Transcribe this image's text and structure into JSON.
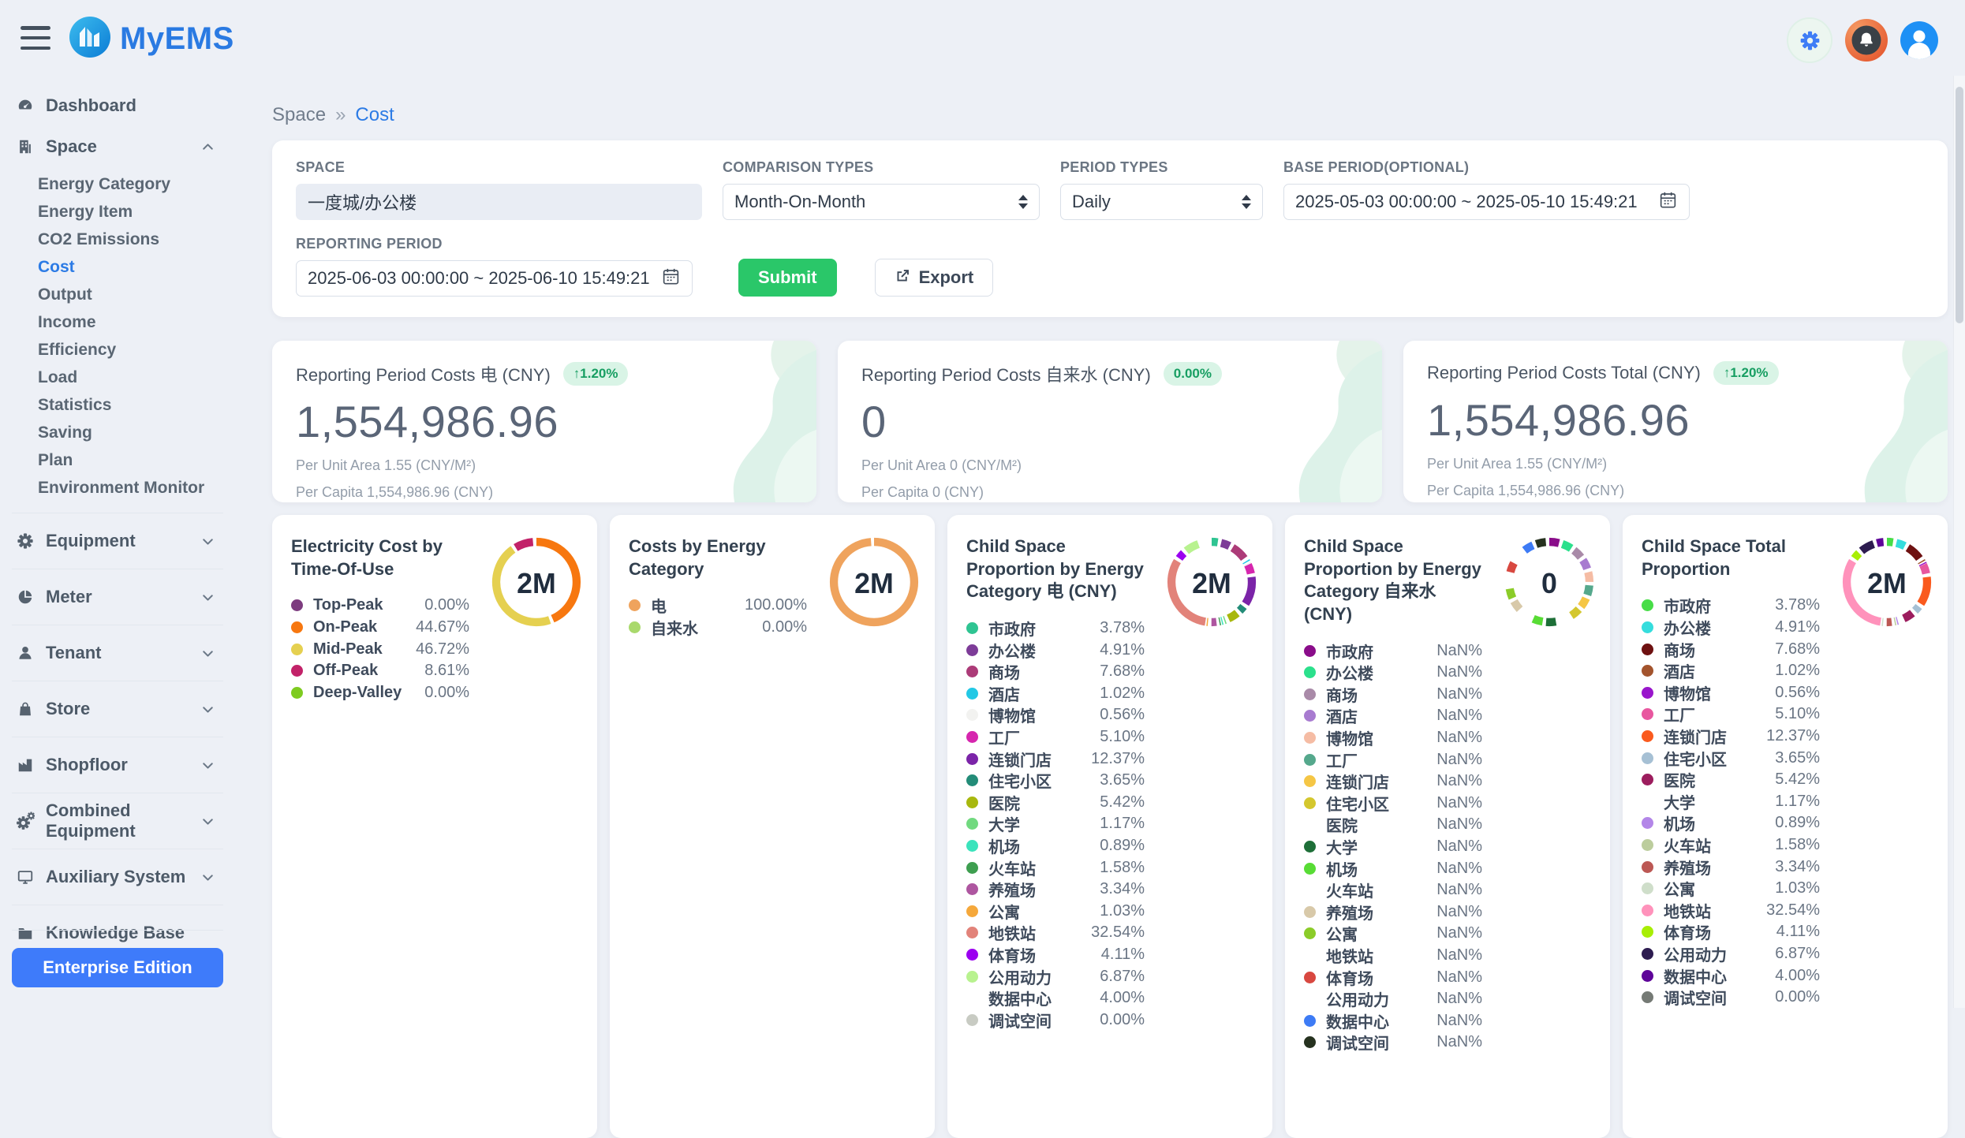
{
  "header": {
    "logo_text": "MyEMS",
    "icons": [
      "menu-icon",
      "settings-gear-icon",
      "notifications-bell-icon",
      "user-avatar-icon"
    ]
  },
  "colors": {
    "accent_blue": "#2c7be5",
    "submit_green": "#2ac769",
    "badge_green_bg": "#d9f4e6",
    "badge_green_text": "#179e62",
    "page_bg": "#edf0f6"
  },
  "breadcrumb": {
    "parent": "Space",
    "separator": "»",
    "current": "Cost"
  },
  "sidebar": {
    "items": [
      {
        "label": "Dashboard",
        "icon": "dashboard",
        "chevron": null,
        "divider": false
      },
      {
        "label": "Space",
        "icon": "building",
        "chevron": "up",
        "divider": false,
        "children": [
          "Energy Category",
          "Energy Item",
          "CO2 Emissions",
          "Cost",
          "Output",
          "Income",
          "Efficiency",
          "Load",
          "Statistics",
          "Saving",
          "Plan",
          "Environment Monitor"
        ],
        "active_child": "Cost"
      },
      {
        "label": "Equipment",
        "icon": "gear",
        "chevron": "down",
        "divider": true
      },
      {
        "label": "Meter",
        "icon": "pie",
        "chevron": "down",
        "divider": true
      },
      {
        "label": "Tenant",
        "icon": "person",
        "chevron": "down",
        "divider": true
      },
      {
        "label": "Store",
        "icon": "bag",
        "chevron": "down",
        "divider": true
      },
      {
        "label": "Shopfloor",
        "icon": "factory",
        "chevron": "down",
        "divider": true
      },
      {
        "label": "Combined Equipment",
        "icon": "gears",
        "chevron": "down",
        "divider": true
      },
      {
        "label": "Auxiliary System",
        "icon": "monitor",
        "chevron": "down",
        "divider": true
      },
      {
        "label": "Knowledge Base",
        "icon": "folder",
        "chevron": null,
        "divider": true
      }
    ],
    "edition_button": "Enterprise Edition"
  },
  "filter": {
    "space_label": "SPACE",
    "space_value": "一度城/办公楼",
    "comparison_label": "COMPARISON TYPES",
    "comparison_value": "Month-On-Month",
    "period_label": "PERIOD TYPES",
    "period_value": "Daily",
    "base_label": "BASE PERIOD(OPTIONAL)",
    "base_value": "2025-05-03 00:00:00 ~ 2025-05-10 15:49:21",
    "reporting_label": "REPORTING PERIOD",
    "reporting_value": "2025-06-03 00:00:00 ~ 2025-06-10 15:49:21",
    "submit_label": "Submit",
    "export_label": "Export"
  },
  "stat_cards": [
    {
      "title": "Reporting Period Costs 电 (CNY)",
      "badge": "↑1.20%",
      "value": "1,554,986.96",
      "sub1": "Per Unit Area 1.55 (CNY/M²)",
      "sub2": "Per Capita 1,554,986.96 (CNY)"
    },
    {
      "title": "Reporting Period Costs 自来水 (CNY)",
      "badge": "0.00%",
      "value": "0",
      "sub1": "Per Unit Area 0 (CNY/M²)",
      "sub2": "Per Capita 0 (CNY)"
    },
    {
      "title": "Reporting Period Costs Total (CNY)",
      "badge": "↑1.20%",
      "value": "1,554,986.96",
      "sub1": "Per Unit Area 1.55 (CNY/M²)",
      "sub2": "Per Capita 1,554,986.96 (CNY)"
    }
  ],
  "chart_data": [
    {
      "type": "donut",
      "title": "Electricity Cost by Time-Of-Use",
      "center_label": "2M",
      "legend_position": "left",
      "series": [
        {
          "name": "Top-Peak",
          "value": "0.00%",
          "pct": 0,
          "color": "#7d3c7f"
        },
        {
          "name": "On-Peak",
          "value": "44.67%",
          "pct": 44.67,
          "color": "#f7770f"
        },
        {
          "name": "Mid-Peak",
          "value": "46.72%",
          "pct": 46.72,
          "color": "#e5d050"
        },
        {
          "name": "Off-Peak",
          "value": "8.61%",
          "pct": 8.61,
          "color": "#c22269"
        },
        {
          "name": "Deep-Valley",
          "value": "0.00%",
          "pct": 0,
          "color": "#7ecb20"
        }
      ]
    },
    {
      "type": "donut",
      "title": "Costs by Energy Category",
      "center_label": "2M",
      "legend_position": "left",
      "series": [
        {
          "name": "电",
          "value": "100.00%",
          "pct": 100,
          "color": "#efa35d"
        },
        {
          "name": "自来水",
          "value": "0.00%",
          "pct": 0,
          "color": "#a9d96c"
        }
      ]
    },
    {
      "type": "donut",
      "title": "Child Space Proportion by Energy Category 电 (CNY)",
      "center_label": "2M",
      "legend_position": "left",
      "series": [
        {
          "name": "市政府",
          "value": "3.78%",
          "pct": 3.78,
          "color": "#2fc492"
        },
        {
          "name": "办公楼",
          "value": "4.91%",
          "pct": 4.91,
          "color": "#7d3c98"
        },
        {
          "name": "商场",
          "value": "7.68%",
          "pct": 7.68,
          "color": "#ac3b78"
        },
        {
          "name": "酒店",
          "value": "1.02%",
          "pct": 1.02,
          "color": "#22c8e5"
        },
        {
          "name": "博物馆",
          "value": "0.56%",
          "pct": 0.56,
          "color": "#f2f2f0"
        },
        {
          "name": "工厂",
          "value": "5.10%",
          "pct": 5.1,
          "color": "#d626ae"
        },
        {
          "name": "连锁门店",
          "value": "12.37%",
          "pct": 12.37,
          "color": "#7b24a8"
        },
        {
          "name": "住宅小区",
          "value": "3.65%",
          "pct": 3.65,
          "color": "#238c78"
        },
        {
          "name": "医院",
          "value": "5.42%",
          "pct": 5.42,
          "color": "#a8b80e"
        },
        {
          "name": "大学",
          "value": "1.17%",
          "pct": 1.17,
          "color": "#71d97f"
        },
        {
          "name": "机场",
          "value": "0.89%",
          "pct": 0.89,
          "color": "#3be3bc"
        },
        {
          "name": "火车站",
          "value": "1.58%",
          "pct": 1.58,
          "color": "#3e9e50"
        },
        {
          "name": "养殖场",
          "value": "3.34%",
          "pct": 3.34,
          "color": "#ae56a0"
        },
        {
          "name": "公寓",
          "value": "1.03%",
          "pct": 1.03,
          "color": "#f5a83b"
        },
        {
          "name": "地铁站",
          "value": "32.54%",
          "pct": 32.54,
          "color": "#e2837a"
        },
        {
          "name": "体育场",
          "value": "4.11%",
          "pct": 4.11,
          "color": "#9b00f0"
        },
        {
          "name": "公用动力",
          "value": "6.87%",
          "pct": 6.87,
          "color": "#b8f28f"
        },
        {
          "name": "数据中心",
          "value": "4.00%",
          "pct": 4.0,
          "color": "#ffffff"
        },
        {
          "name": "调试空间",
          "value": "0.00%",
          "pct": 0,
          "color": "#c8cbc3"
        }
      ]
    },
    {
      "type": "donut",
      "title": "Child Space Proportion by Energy Category 自来水 (CNY)",
      "center_label": "0",
      "legend_position": "left",
      "equal_arcs": true,
      "series": [
        {
          "name": "市政府",
          "value": "NaN%",
          "pct": 0,
          "color": "#8a0d8a"
        },
        {
          "name": "办公楼",
          "value": "NaN%",
          "pct": 0,
          "color": "#2be08c"
        },
        {
          "name": "商场",
          "value": "NaN%",
          "pct": 0,
          "color": "#a98aa8"
        },
        {
          "name": "酒店",
          "value": "NaN%",
          "pct": 0,
          "color": "#a87bd0"
        },
        {
          "name": "博物馆",
          "value": "NaN%",
          "pct": 0,
          "color": "#f5bca4"
        },
        {
          "name": "工厂",
          "value": "NaN%",
          "pct": 0,
          "color": "#55a88c"
        },
        {
          "name": "连锁门店",
          "value": "NaN%",
          "pct": 0,
          "color": "#f5c645"
        },
        {
          "name": "住宅小区",
          "value": "NaN%",
          "pct": 0,
          "color": "#d4c72e"
        },
        {
          "name": "医院",
          "value": "NaN%",
          "pct": 0,
          "color": "#ffffff"
        },
        {
          "name": "大学",
          "value": "NaN%",
          "pct": 0,
          "color": "#1e6f38"
        },
        {
          "name": "机场",
          "value": "NaN%",
          "pct": 0,
          "color": "#58dc35"
        },
        {
          "name": "火车站",
          "value": "NaN%",
          "pct": 0,
          "color": "#ffffff"
        },
        {
          "name": "养殖场",
          "value": "NaN%",
          "pct": 0,
          "color": "#d8c9a9"
        },
        {
          "name": "公寓",
          "value": "NaN%",
          "pct": 0,
          "color": "#8bcc29"
        },
        {
          "name": "地铁站",
          "value": "NaN%",
          "pct": 0,
          "color": "#ffffff"
        },
        {
          "name": "体育场",
          "value": "NaN%",
          "pct": 0,
          "color": "#d84840"
        },
        {
          "name": "公用动力",
          "value": "NaN%",
          "pct": 0,
          "color": "#ffffff"
        },
        {
          "name": "数据中心",
          "value": "NaN%",
          "pct": 0,
          "color": "#3d7bf5"
        },
        {
          "name": "调试空间",
          "value": "NaN%",
          "pct": 0,
          "color": "#26321f"
        }
      ]
    },
    {
      "type": "donut",
      "title": "Child Space Total Proportion",
      "center_label": "2M",
      "legend_position": "left",
      "series": [
        {
          "name": "市政府",
          "value": "3.78%",
          "pct": 3.78,
          "color": "#47dd47"
        },
        {
          "name": "办公楼",
          "value": "4.91%",
          "pct": 4.91,
          "color": "#35dddd"
        },
        {
          "name": "商场",
          "value": "7.68%",
          "pct": 7.68,
          "color": "#6e1111"
        },
        {
          "name": "酒店",
          "value": "1.02%",
          "pct": 1.02,
          "color": "#a3542d"
        },
        {
          "name": "博物馆",
          "value": "0.56%",
          "pct": 0.56,
          "color": "#9916cc"
        },
        {
          "name": "工厂",
          "value": "5.10%",
          "pct": 5.1,
          "color": "#e8579f"
        },
        {
          "name": "连锁门店",
          "value": "12.37%",
          "pct": 12.37,
          "color": "#fa5a1e"
        },
        {
          "name": "住宅小区",
          "value": "3.65%",
          "pct": 3.65,
          "color": "#a6c0d4"
        },
        {
          "name": "医院",
          "value": "5.42%",
          "pct": 5.42,
          "color": "#9c1d5e"
        },
        {
          "name": "大学",
          "value": "1.17%",
          "pct": 1.17,
          "color": "#ffffff"
        },
        {
          "name": "机场",
          "value": "0.89%",
          "pct": 0.89,
          "color": "#b386e8"
        },
        {
          "name": "火车站",
          "value": "1.58%",
          "pct": 1.58,
          "color": "#bccd9d"
        },
        {
          "name": "养殖场",
          "value": "3.34%",
          "pct": 3.34,
          "color": "#bc5854"
        },
        {
          "name": "公寓",
          "value": "1.03%",
          "pct": 1.03,
          "color": "#cfdeca"
        },
        {
          "name": "地铁站",
          "value": "32.54%",
          "pct": 32.54,
          "color": "#ff92bb"
        },
        {
          "name": "体育场",
          "value": "4.11%",
          "pct": 4.11,
          "color": "#a8ee05"
        },
        {
          "name": "公用动力",
          "value": "6.87%",
          "pct": 6.87,
          "color": "#2d1c50"
        },
        {
          "name": "数据中心",
          "value": "4.00%",
          "pct": 4.0,
          "color": "#5e0599"
        },
        {
          "name": "调试空间",
          "value": "0.00%",
          "pct": 0,
          "color": "#757a75"
        }
      ]
    }
  ]
}
